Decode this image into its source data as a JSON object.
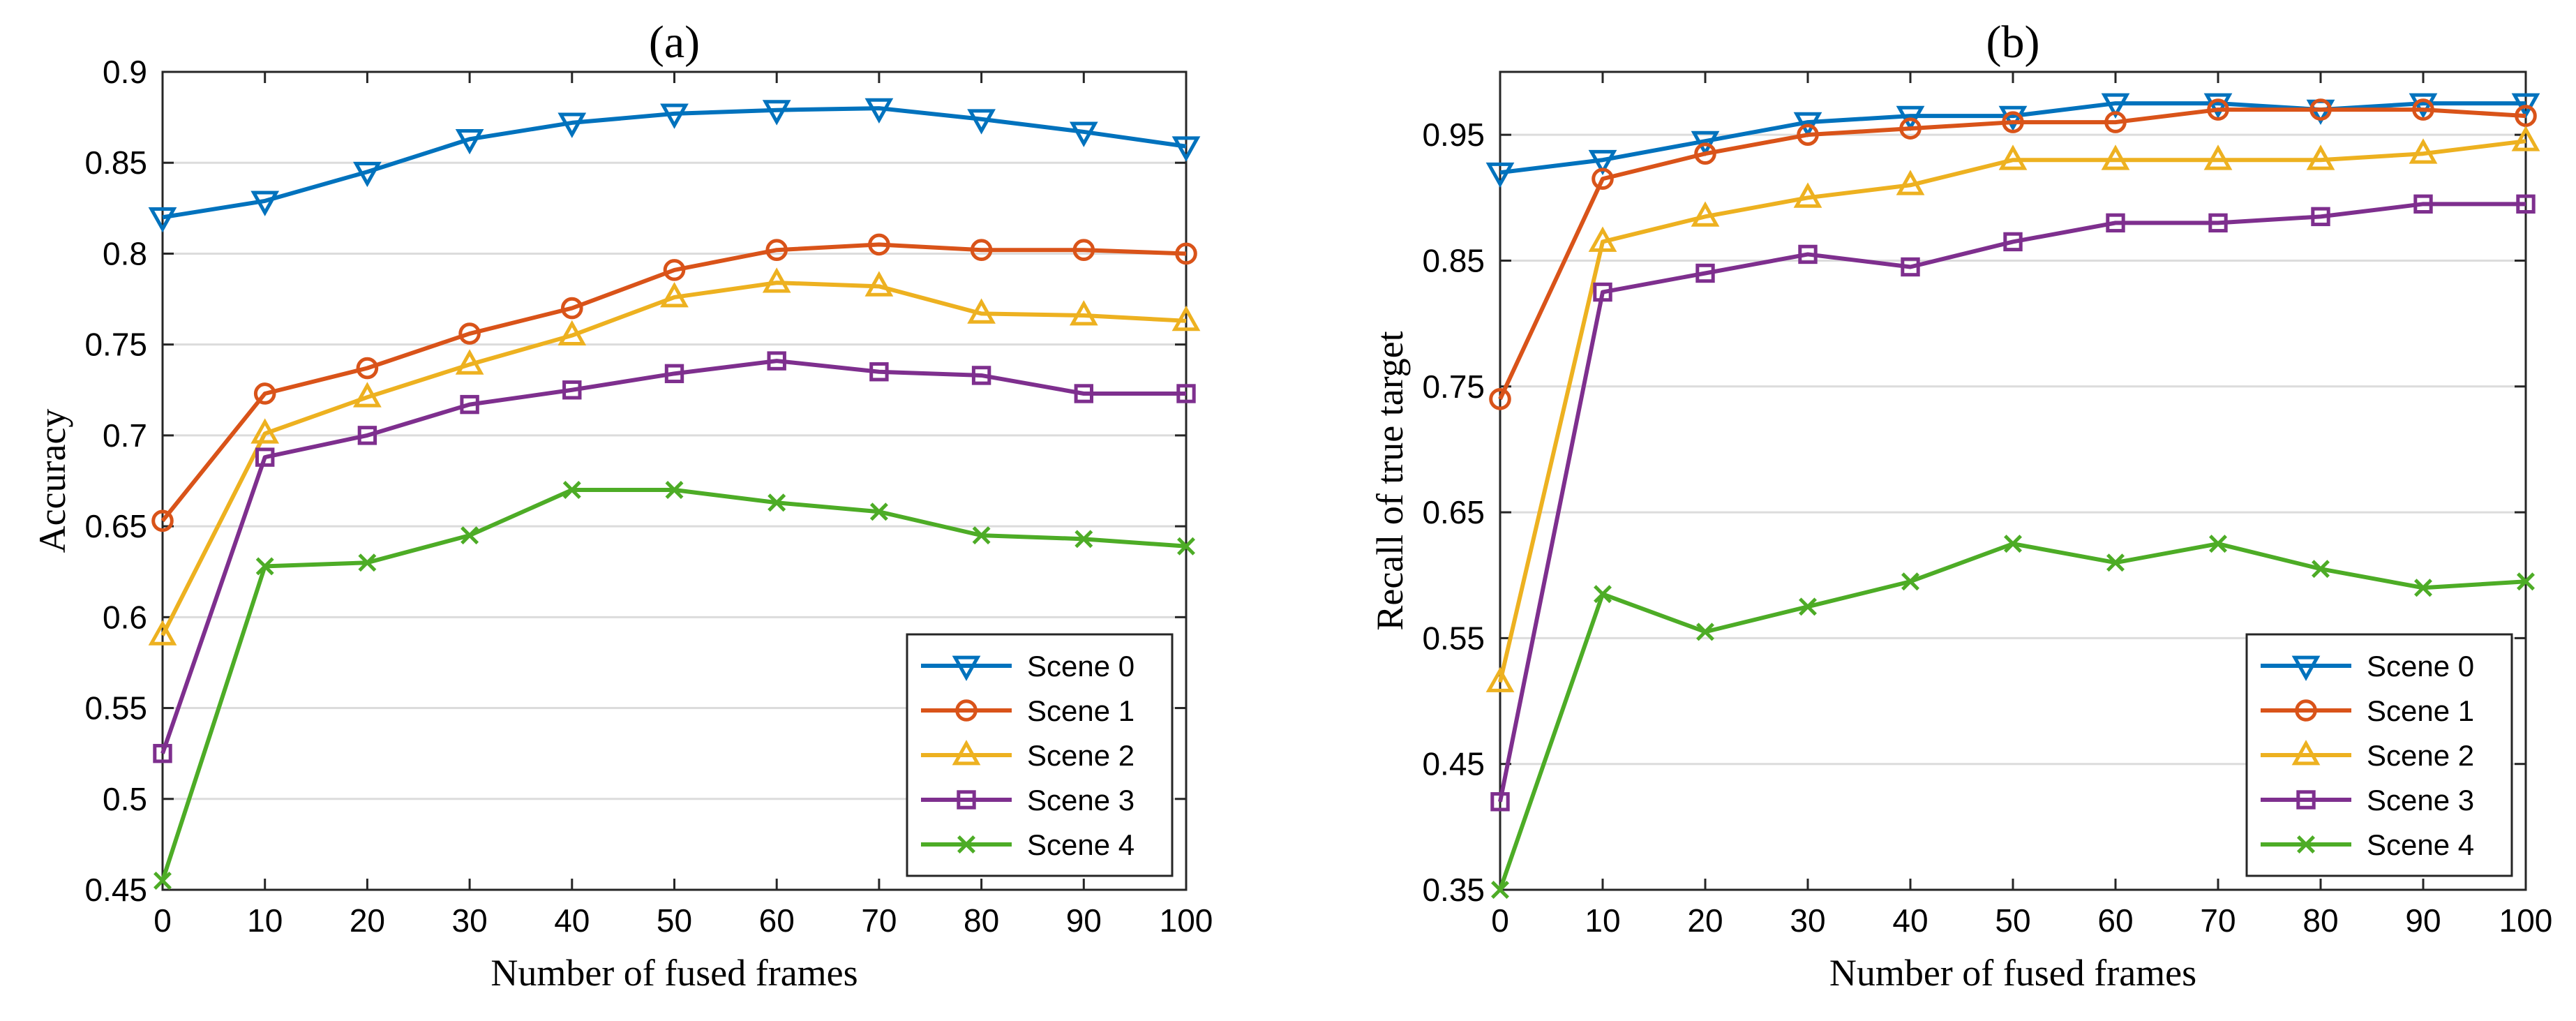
{
  "chart_data": [
    {
      "type": "line",
      "title": "(a)",
      "xlabel": "Number of fused frames",
      "ylabel": "Accuracy",
      "xlim": [
        0,
        100
      ],
      "ylim": [
        0.45,
        0.9
      ],
      "xticks": [
        0,
        10,
        20,
        30,
        40,
        50,
        60,
        70,
        80,
        90,
        100
      ],
      "xtick_labels": [
        "0",
        "10",
        "20",
        "30",
        "40",
        "50",
        "60",
        "70",
        "80",
        "90",
        "100"
      ],
      "yticks": [
        0.45,
        0.5,
        0.55,
        0.6,
        0.65,
        0.7,
        0.75,
        0.8,
        0.85,
        0.9
      ],
      "ytick_labels": [
        "0.45",
        "0.5",
        "0.55",
        "0.6",
        "0.65",
        "0.7",
        "0.75",
        "0.8",
        "0.85",
        "0.9"
      ],
      "grid": "horizontal",
      "legend_position": "bottom-right",
      "x": [
        0,
        10,
        20,
        30,
        40,
        50,
        60,
        70,
        80,
        90,
        100
      ],
      "series": [
        {
          "name": "Scene 0",
          "color": "#0072BD",
          "marker": "triangle-down",
          "values": [
            0.82,
            0.829,
            0.845,
            0.863,
            0.872,
            0.877,
            0.879,
            0.88,
            0.874,
            0.867,
            0.859
          ]
        },
        {
          "name": "Scene 1",
          "color": "#D95319",
          "marker": "circle",
          "values": [
            0.653,
            0.723,
            0.737,
            0.756,
            0.77,
            0.791,
            0.802,
            0.805,
            0.802,
            0.802,
            0.8
          ]
        },
        {
          "name": "Scene 2",
          "color": "#EDB120",
          "marker": "triangle-up",
          "values": [
            0.59,
            0.701,
            0.721,
            0.739,
            0.755,
            0.776,
            0.784,
            0.782,
            0.767,
            0.766,
            0.763
          ]
        },
        {
          "name": "Scene 3",
          "color": "#7E2F8E",
          "marker": "square",
          "values": [
            0.525,
            0.688,
            0.7,
            0.717,
            0.725,
            0.734,
            0.741,
            0.735,
            0.733,
            0.723,
            0.723
          ]
        },
        {
          "name": "Scene 4",
          "color": "#4DAC26",
          "marker": "x",
          "values": [
            0.455,
            0.628,
            0.63,
            0.645,
            0.67,
            0.67,
            0.663,
            0.658,
            0.645,
            0.643,
            0.639
          ]
        }
      ]
    },
    {
      "type": "line",
      "title": "(b)",
      "xlabel": "Number of fused frames",
      "ylabel": "Recall of true target",
      "xlim": [
        0,
        100
      ],
      "ylim": [
        0.35,
        1.0
      ],
      "xticks": [
        0,
        10,
        20,
        30,
        40,
        50,
        60,
        70,
        80,
        90,
        100
      ],
      "xtick_labels": [
        "0",
        "10",
        "20",
        "30",
        "40",
        "50",
        "60",
        "70",
        "80",
        "90",
        "100"
      ],
      "yticks": [
        0.35,
        0.45,
        0.55,
        0.65,
        0.75,
        0.85,
        0.95
      ],
      "ytick_labels": [
        "0.35",
        "0.45",
        "0.55",
        "0.65",
        "0.75",
        "0.85",
        "0.95"
      ],
      "grid": "horizontal",
      "legend_position": "bottom-right",
      "x": [
        0,
        10,
        20,
        30,
        40,
        50,
        60,
        70,
        80,
        90,
        100
      ],
      "series": [
        {
          "name": "Scene 0",
          "color": "#0072BD",
          "marker": "triangle-down",
          "values": [
            0.92,
            0.93,
            0.945,
            0.96,
            0.965,
            0.965,
            0.975,
            0.975,
            0.97,
            0.975,
            0.975
          ]
        },
        {
          "name": "Scene 1",
          "color": "#D95319",
          "marker": "circle",
          "values": [
            0.74,
            0.915,
            0.935,
            0.95,
            0.955,
            0.96,
            0.96,
            0.97,
            0.97,
            0.97,
            0.965
          ]
        },
        {
          "name": "Scene 2",
          "color": "#EDB120",
          "marker": "triangle-up",
          "values": [
            0.515,
            0.865,
            0.885,
            0.9,
            0.91,
            0.93,
            0.93,
            0.93,
            0.93,
            0.935,
            0.945
          ]
        },
        {
          "name": "Scene 3",
          "color": "#7E2F8E",
          "marker": "square",
          "values": [
            0.42,
            0.825,
            0.84,
            0.855,
            0.845,
            0.865,
            0.88,
            0.88,
            0.885,
            0.895,
            0.895
          ]
        },
        {
          "name": "Scene 4",
          "color": "#4DAC26",
          "marker": "x",
          "values": [
            0.35,
            0.585,
            0.555,
            0.575,
            0.595,
            0.625,
            0.61,
            0.625,
            0.605,
            0.59,
            0.595
          ]
        }
      ]
    }
  ]
}
